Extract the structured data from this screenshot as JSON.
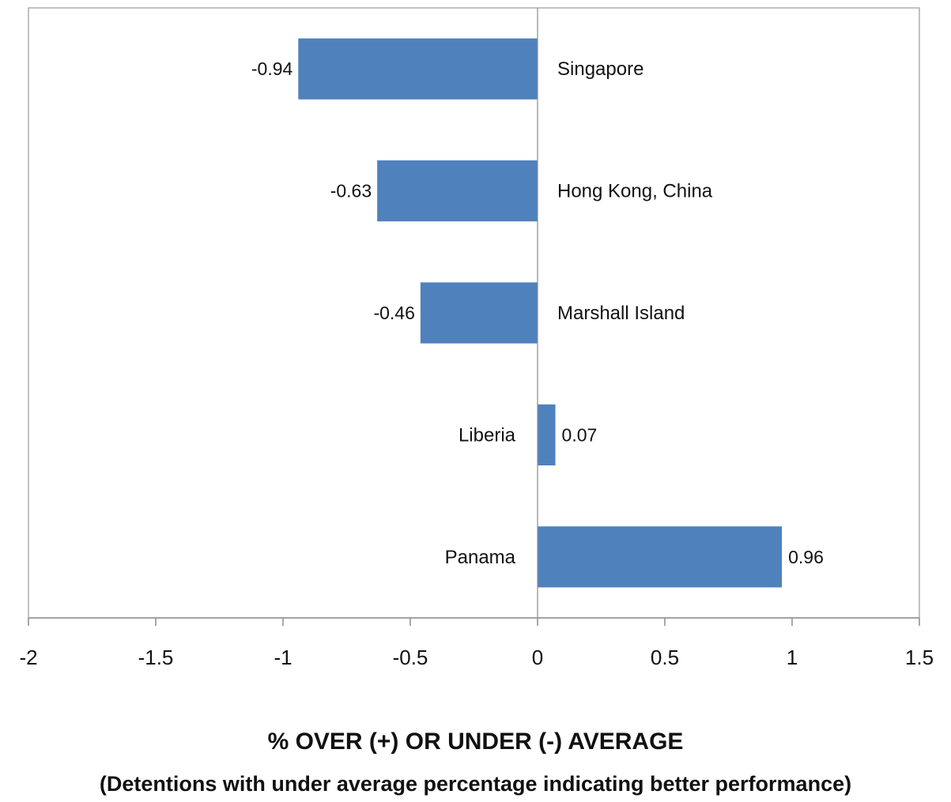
{
  "chart_data": {
    "type": "bar",
    "orientation": "horizontal",
    "categories": [
      "Singapore",
      "Hong Kong, China",
      "Marshall Island",
      "Liberia",
      "Panama"
    ],
    "values": [
      -0.94,
      -0.63,
      -0.46,
      0.07,
      0.96
    ],
    "data_labels": [
      "-0.94",
      "-0.63",
      "-0.46",
      "0.07",
      "0.96"
    ],
    "xlim": [
      -2,
      1.5
    ],
    "xticks": [
      -2,
      -1.5,
      -1,
      -0.5,
      0,
      0.5,
      1,
      1.5
    ],
    "xtick_labels": [
      "-2",
      "-1.5",
      "-1",
      "-0.5",
      "0",
      "0.5",
      "1",
      "1.5"
    ],
    "xlabel": "% OVER (+) OR UNDER (-) AVERAGE",
    "xlabel_sub": "(Detentions with under average percentage indicating better performance)",
    "grid": false,
    "legend": "none",
    "bar_color": "#4f81bd"
  }
}
